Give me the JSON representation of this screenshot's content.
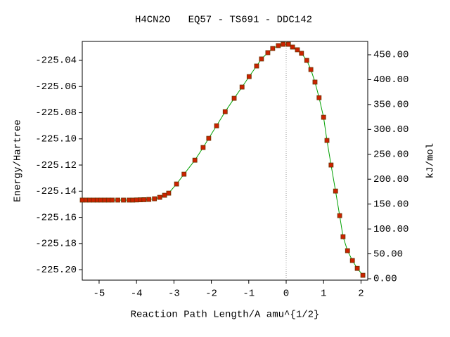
{
  "chart_data": {
    "type": "line",
    "title": "H4CN2O   EQ57 - TS691 - DDC142",
    "xlabel": "Reaction Path Length/A amu^{1/2}",
    "ylabel": "Energy/Hartree",
    "y2label": "kJ/mol",
    "line_color": "#00a000",
    "marker_color": "#cc2200",
    "vline_x": 0,
    "xlim": [
      -5.45,
      2.18
    ],
    "ylim": [
      -225.208,
      -225.0255
    ],
    "y2lim": [
      -2.8,
      476.8
    ],
    "xticks": [
      -5,
      -4,
      -3,
      -2,
      -1,
      0,
      1,
      2
    ],
    "yticks": [
      -225.04,
      -225.06,
      -225.08,
      {
        "value": -225.1,
        "label": "-225.10"
      },
      -225.12,
      -225.14,
      -225.16,
      -225.18,
      {
        "value": -225.2,
        "label": "-225.20"
      }
    ],
    "y2ticks": [
      {
        "value": 0,
        "label": "0.00"
      },
      {
        "value": 50,
        "label": "50.00"
      },
      {
        "value": 100,
        "label": "100.00"
      },
      {
        "value": 150,
        "label": "150.00"
      },
      {
        "value": 200,
        "label": "200.00"
      },
      {
        "value": 250,
        "label": "250.00"
      },
      {
        "value": 300,
        "label": "300.00"
      },
      {
        "value": 350,
        "label": "350.00"
      },
      {
        "value": 400,
        "label": "400.00"
      },
      {
        "value": 450,
        "label": "450.00"
      }
    ],
    "x": [
      -5.45,
      -5.35,
      -5.25,
      -5.15,
      -5.05,
      -4.95,
      -4.85,
      -4.75,
      -4.65,
      -4.5,
      -4.35,
      -4.2,
      -4.1,
      -4.0,
      -3.9,
      -3.8,
      -3.67,
      -3.52,
      -3.38,
      -3.25,
      -3.14,
      -2.93,
      -2.73,
      -2.44,
      -2.22,
      -2.07,
      -1.86,
      -1.63,
      -1.39,
      -1.18,
      -0.99,
      -0.79,
      -0.66,
      -0.49,
      -0.36,
      -0.21,
      -0.08,
      0.06,
      0.17,
      0.3,
      0.41,
      0.55,
      0.66,
      0.77,
      0.88,
      1.0,
      1.09,
      1.2,
      1.32,
      1.43,
      1.52,
      1.64,
      1.77,
      1.9,
      2.05
    ],
    "values": [
      -225.1468,
      -225.1468,
      -225.1468,
      -225.1468,
      -225.1468,
      -225.1468,
      -225.1468,
      -225.1468,
      -225.1468,
      -225.1468,
      -225.1468,
      -225.1468,
      -225.1468,
      -225.1467,
      -225.1466,
      -225.1465,
      -225.1463,
      -225.1458,
      -225.1447,
      -225.1431,
      -225.1415,
      -225.1345,
      -225.127,
      -225.1163,
      -225.1066,
      -225.0996,
      -225.09,
      -225.0792,
      -225.069,
      -225.0604,
      -225.0524,
      -225.0443,
      -225.0389,
      -225.0341,
      -225.0309,
      -225.0287,
      -225.0277,
      -225.0277,
      -225.0298,
      -225.0319,
      -225.0346,
      -225.04,
      -225.047,
      -225.0566,
      -225.0685,
      -225.0835,
      -225.1012,
      -225.12,
      -225.1399,
      -225.1587,
      -225.1748,
      -225.1855,
      -225.193,
      -225.199,
      -225.2043
    ]
  }
}
